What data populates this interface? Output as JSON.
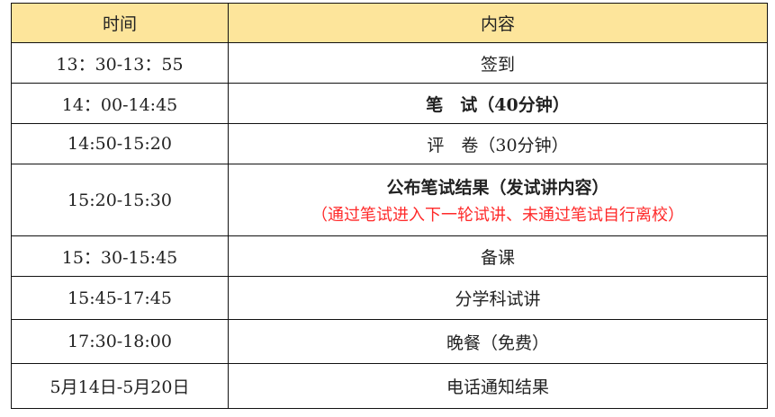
{
  "header": {
    "time": "时间",
    "content": "内容"
  },
  "rows": [
    {
      "time": "13：30-13：55",
      "content": "签到"
    },
    {
      "time": "14：00-14:45",
      "content": "笔　试（40分钟）",
      "bold": true
    },
    {
      "time": "14:50-15:20",
      "content": "评　卷（30分钟）"
    },
    {
      "time": "15:20-15:30",
      "content": "公布笔试结果（发试讲内容）",
      "note": "（通过笔试进入下一轮试讲、未通过笔试自行离校）",
      "bold": true
    },
    {
      "time": "15：30-15:45",
      "content": "备课"
    },
    {
      "time": "15:45-17:45",
      "content": "分学科试讲"
    },
    {
      "time": "17:30-18:00",
      "content": "晚餐（免费）"
    },
    {
      "time": "5月14日-5月20日",
      "content": "电话通知结果"
    }
  ],
  "colors": {
    "header_bg": "#fde59b",
    "note": "#ff2a2a"
  }
}
